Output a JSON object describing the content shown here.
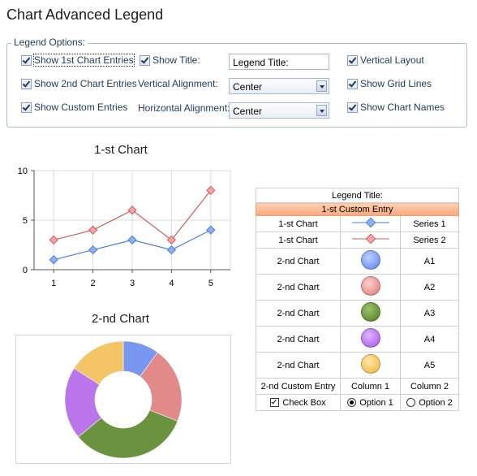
{
  "window_title": "Chart Advanced Legend",
  "options": {
    "group_label": "Legend Options:",
    "show_first": "Show 1st Chart Entries",
    "show_second": "Show 2nd Chart Entries",
    "show_custom": "Show Custom Entries",
    "show_title": "Show Title:",
    "vertical_alignment": "Vertical Alignment:",
    "horizontal_alignment": "Horizontal Alignment:",
    "legend_title_value": "Legend Title:",
    "vertical_alignment_value": "Center",
    "horizontal_alignment_value": "Center",
    "vertical_layout": "Vertical Layout",
    "show_grid_lines": "Show Grid Lines",
    "show_chart_names": "Show Chart Names"
  },
  "chart1": {
    "title": "1-st Chart",
    "chart_data": {
      "type": "line",
      "title": "1-st Chart",
      "x": [
        1,
        2,
        3,
        4,
        5
      ],
      "ylim": [
        0,
        10
      ],
      "yticks": [
        0,
        5,
        10
      ],
      "grid": true,
      "series": [
        {
          "name": "Series 1",
          "values": [
            1,
            2,
            3,
            2,
            4
          ],
          "color": "#4a7fd6"
        },
        {
          "name": "Series 2",
          "values": [
            3,
            4,
            6,
            3,
            8
          ],
          "color": "#cf5c5c"
        }
      ]
    }
  },
  "chart2": {
    "title": "2-nd Chart",
    "chart_data": {
      "type": "pie",
      "title": "2-nd Chart",
      "donut": true,
      "categories": [
        "A1",
        "A2",
        "A3",
        "A4",
        "A5"
      ],
      "values": [
        10,
        21,
        33,
        20,
        16
      ],
      "colors": [
        "#6d8ff0",
        "#e07f7f",
        "#5f8a2f",
        "#b46ae8",
        "#f2c15a"
      ]
    }
  },
  "legend": {
    "title": "Legend Title:",
    "custom_entry": "1-st Custom Entry",
    "rows": [
      {
        "chart": "1-st Chart",
        "label": "Series 1"
      },
      {
        "chart": "1-st Chart",
        "label": "Series 2"
      },
      {
        "chart": "2-nd Chart",
        "label": "A1"
      },
      {
        "chart": "2-nd Chart",
        "label": "A2"
      },
      {
        "chart": "2-nd Chart",
        "label": "A3"
      },
      {
        "chart": "2-nd Chart",
        "label": "A4"
      },
      {
        "chart": "2-nd Chart",
        "label": "A5"
      }
    ],
    "custom_row": {
      "c0": "2-nd Custom Entry",
      "c1": "Column 1",
      "c2": "Column 2"
    },
    "controls_row": {
      "check": "Check Box",
      "opt1": "Option 1",
      "opt2": "Option 2"
    }
  }
}
